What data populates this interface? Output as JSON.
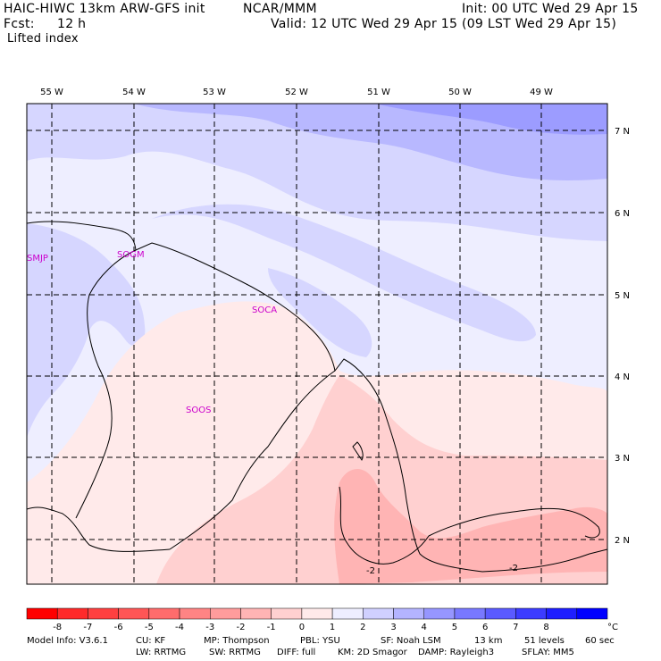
{
  "header": {
    "model": "HAIC-HIWC 13km ARW-GFS init",
    "center": "NCAR/MMM",
    "init": "Init: 00 UTC Wed 29 Apr 15",
    "fcst_label": "Fcst:",
    "fcst_value": "12 h",
    "valid": "Valid: 12 UTC Wed 29 Apr 15 (09 LST Wed 29 Apr 15)",
    "field": "Lifted index"
  },
  "map": {
    "lon_labels": [
      "55 W",
      "54 W",
      "53 W",
      "52 W",
      "51 W",
      "50 W",
      "49 W"
    ],
    "lat_labels": [
      "7 N",
      "6 N",
      "5 N",
      "4 N",
      "3 N",
      "2 N"
    ],
    "stations": [
      "SMJP",
      "SOGM",
      "SOCA",
      "SOOS"
    ],
    "contour_labels": [
      "-2",
      "-2"
    ]
  },
  "colorbar": {
    "ticks": [
      "-8",
      "-7",
      "-6",
      "-5",
      "-4",
      "-3",
      "-2",
      "-1",
      "0",
      "1",
      "2",
      "3",
      "4",
      "5",
      "6",
      "7",
      "8"
    ],
    "unit": "°C",
    "colors": [
      "#ff0000",
      "#ff2a2a",
      "#ff4040",
      "#ff5656",
      "#ff6c6c",
      "#ff8484",
      "#ff9c9c",
      "#ffb4b4",
      "#ffd0d0",
      "#ffeaea",
      "#eeeeff",
      "#d0d0ff",
      "#b4b4ff",
      "#9696ff",
      "#7878ff",
      "#5a5aff",
      "#3c3cff",
      "#1e1eff",
      "#0000ff"
    ]
  },
  "footer": {
    "line1": [
      "Model Info: V3.6.1",
      "CU: KF",
      "MP: Thompson",
      "PBL: YSU",
      "SF: Noah LSM",
      "13 km",
      "51 levels",
      "60 sec"
    ],
    "line2": [
      "LW: RRTMG",
      "SW: RRTMG",
      "DIFF: full",
      "KM: 2D Smagor",
      "DAMP: Rayleigh3",
      "SFLAY: MM5"
    ]
  }
}
